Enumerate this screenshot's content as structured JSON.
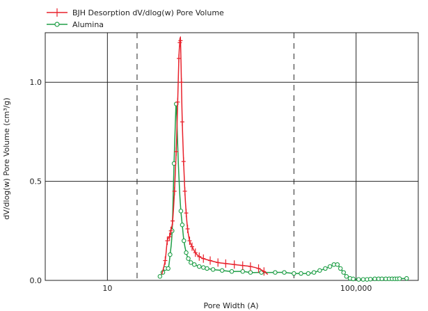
{
  "chart_data": {
    "type": "line",
    "xlabel": "Pore Width (A)",
    "ylabel": "dV/dlog(w) Pore Volume (cm³/g)",
    "x_scale": "log",
    "xlim": [
      1,
      1000000
    ],
    "ylim": [
      0,
      1.25
    ],
    "x_tick_labels": [
      {
        "value": 10,
        "label": "10"
      },
      {
        "value": 100000,
        "label": "100,000"
      }
    ],
    "y_ticks": [
      {
        "value": 0,
        "label": "0.0"
      },
      {
        "value": 0.5,
        "label": "0.5"
      },
      {
        "value": 1.0,
        "label": "1.0"
      }
    ],
    "dashed_vlines": [
      30,
      10000
    ],
    "solid_vlines": [
      10,
      100000
    ],
    "grid": true,
    "legend_position": "top-left",
    "series": [
      {
        "name": "BJH Desorption dV/dlog(w) Pore Volume",
        "color": "#e8202a",
        "marker": "plus",
        "points": [
          [
            75,
            0.03
          ],
          [
            85,
            0.1
          ],
          [
            92,
            0.2
          ],
          [
            100,
            0.22
          ],
          [
            105,
            0.25
          ],
          [
            112,
            0.3
          ],
          [
            120,
            0.45
          ],
          [
            128,
            0.65
          ],
          [
            135,
            0.9
          ],
          [
            141,
            1.12
          ],
          [
            146,
            1.2
          ],
          [
            150,
            1.21
          ],
          [
            155,
            1.0
          ],
          [
            160,
            0.8
          ],
          [
            168,
            0.6
          ],
          [
            176,
            0.45
          ],
          [
            185,
            0.34
          ],
          [
            195,
            0.26
          ],
          [
            210,
            0.2
          ],
          [
            230,
            0.17
          ],
          [
            260,
            0.14
          ],
          [
            300,
            0.12
          ],
          [
            350,
            0.11
          ],
          [
            450,
            0.1
          ],
          [
            600,
            0.09
          ],
          [
            800,
            0.085
          ],
          [
            1100,
            0.08
          ],
          [
            1500,
            0.075
          ],
          [
            2000,
            0.07
          ],
          [
            2700,
            0.06
          ],
          [
            3300,
            0.045
          ],
          [
            3800,
            0.03
          ]
        ],
        "marker_x": [
          85,
          92,
          100,
          105,
          112,
          120,
          128,
          135,
          141,
          146,
          150,
          155,
          160,
          168,
          176,
          185,
          195,
          210,
          230,
          260,
          300,
          350,
          450,
          600,
          800,
          1100,
          1500,
          2000,
          2700,
          3300
        ]
      },
      {
        "name": "Alumina",
        "color": "#1e9e46",
        "marker": "circle",
        "points": [
          [
            70,
            0.02
          ],
          [
            78,
            0.04
          ],
          [
            85,
            0.06
          ],
          [
            95,
            0.06
          ],
          [
            102,
            0.13
          ],
          [
            110,
            0.25
          ],
          [
            118,
            0.59
          ],
          [
            124,
            0.8
          ],
          [
            128,
            0.89
          ],
          [
            133,
            0.75
          ],
          [
            138,
            0.6
          ],
          [
            145,
            0.45
          ],
          [
            152,
            0.35
          ],
          [
            160,
            0.28
          ],
          [
            170,
            0.2
          ],
          [
            185,
            0.14
          ],
          [
            200,
            0.11
          ],
          [
            220,
            0.09
          ],
          [
            250,
            0.08
          ],
          [
            300,
            0.07
          ],
          [
            350,
            0.065
          ],
          [
            400,
            0.06
          ],
          [
            500,
            0.055
          ],
          [
            700,
            0.05
          ],
          [
            1000,
            0.045
          ],
          [
            1500,
            0.045
          ],
          [
            2000,
            0.04
          ],
          [
            3000,
            0.04
          ],
          [
            5000,
            0.04
          ],
          [
            7000,
            0.04
          ],
          [
            10000,
            0.035
          ],
          [
            13000,
            0.035
          ],
          [
            17000,
            0.035
          ],
          [
            21000,
            0.04
          ],
          [
            26000,
            0.05
          ],
          [
            32000,
            0.06
          ],
          [
            38000,
            0.07
          ],
          [
            44000,
            0.08
          ],
          [
            50000,
            0.08
          ],
          [
            56000,
            0.06
          ],
          [
            63000,
            0.04
          ],
          [
            70000,
            0.02
          ],
          [
            80000,
            0.01
          ],
          [
            100000,
            0.005
          ],
          [
            150000,
            0.005
          ],
          [
            200000,
            0.008
          ],
          [
            300000,
            0.008
          ],
          [
            450000,
            0.008
          ],
          [
            650000,
            0.01
          ]
        ],
        "marker_x": [
          70,
          78,
          85,
          95,
          102,
          110,
          118,
          128,
          152,
          160,
          170,
          185,
          200,
          220,
          250,
          300,
          350,
          400,
          500,
          700,
          1000,
          1500,
          2000,
          3000,
          5000,
          7000,
          10000,
          13000,
          17000,
          21000,
          26000,
          32000,
          38000,
          44000,
          50000,
          56000,
          63000,
          70000,
          80000,
          90000,
          110000,
          130000,
          150000,
          170000,
          200000,
          230000,
          260000,
          300000,
          340000,
          380000,
          420000,
          460000,
          500000,
          650000
        ]
      }
    ]
  }
}
